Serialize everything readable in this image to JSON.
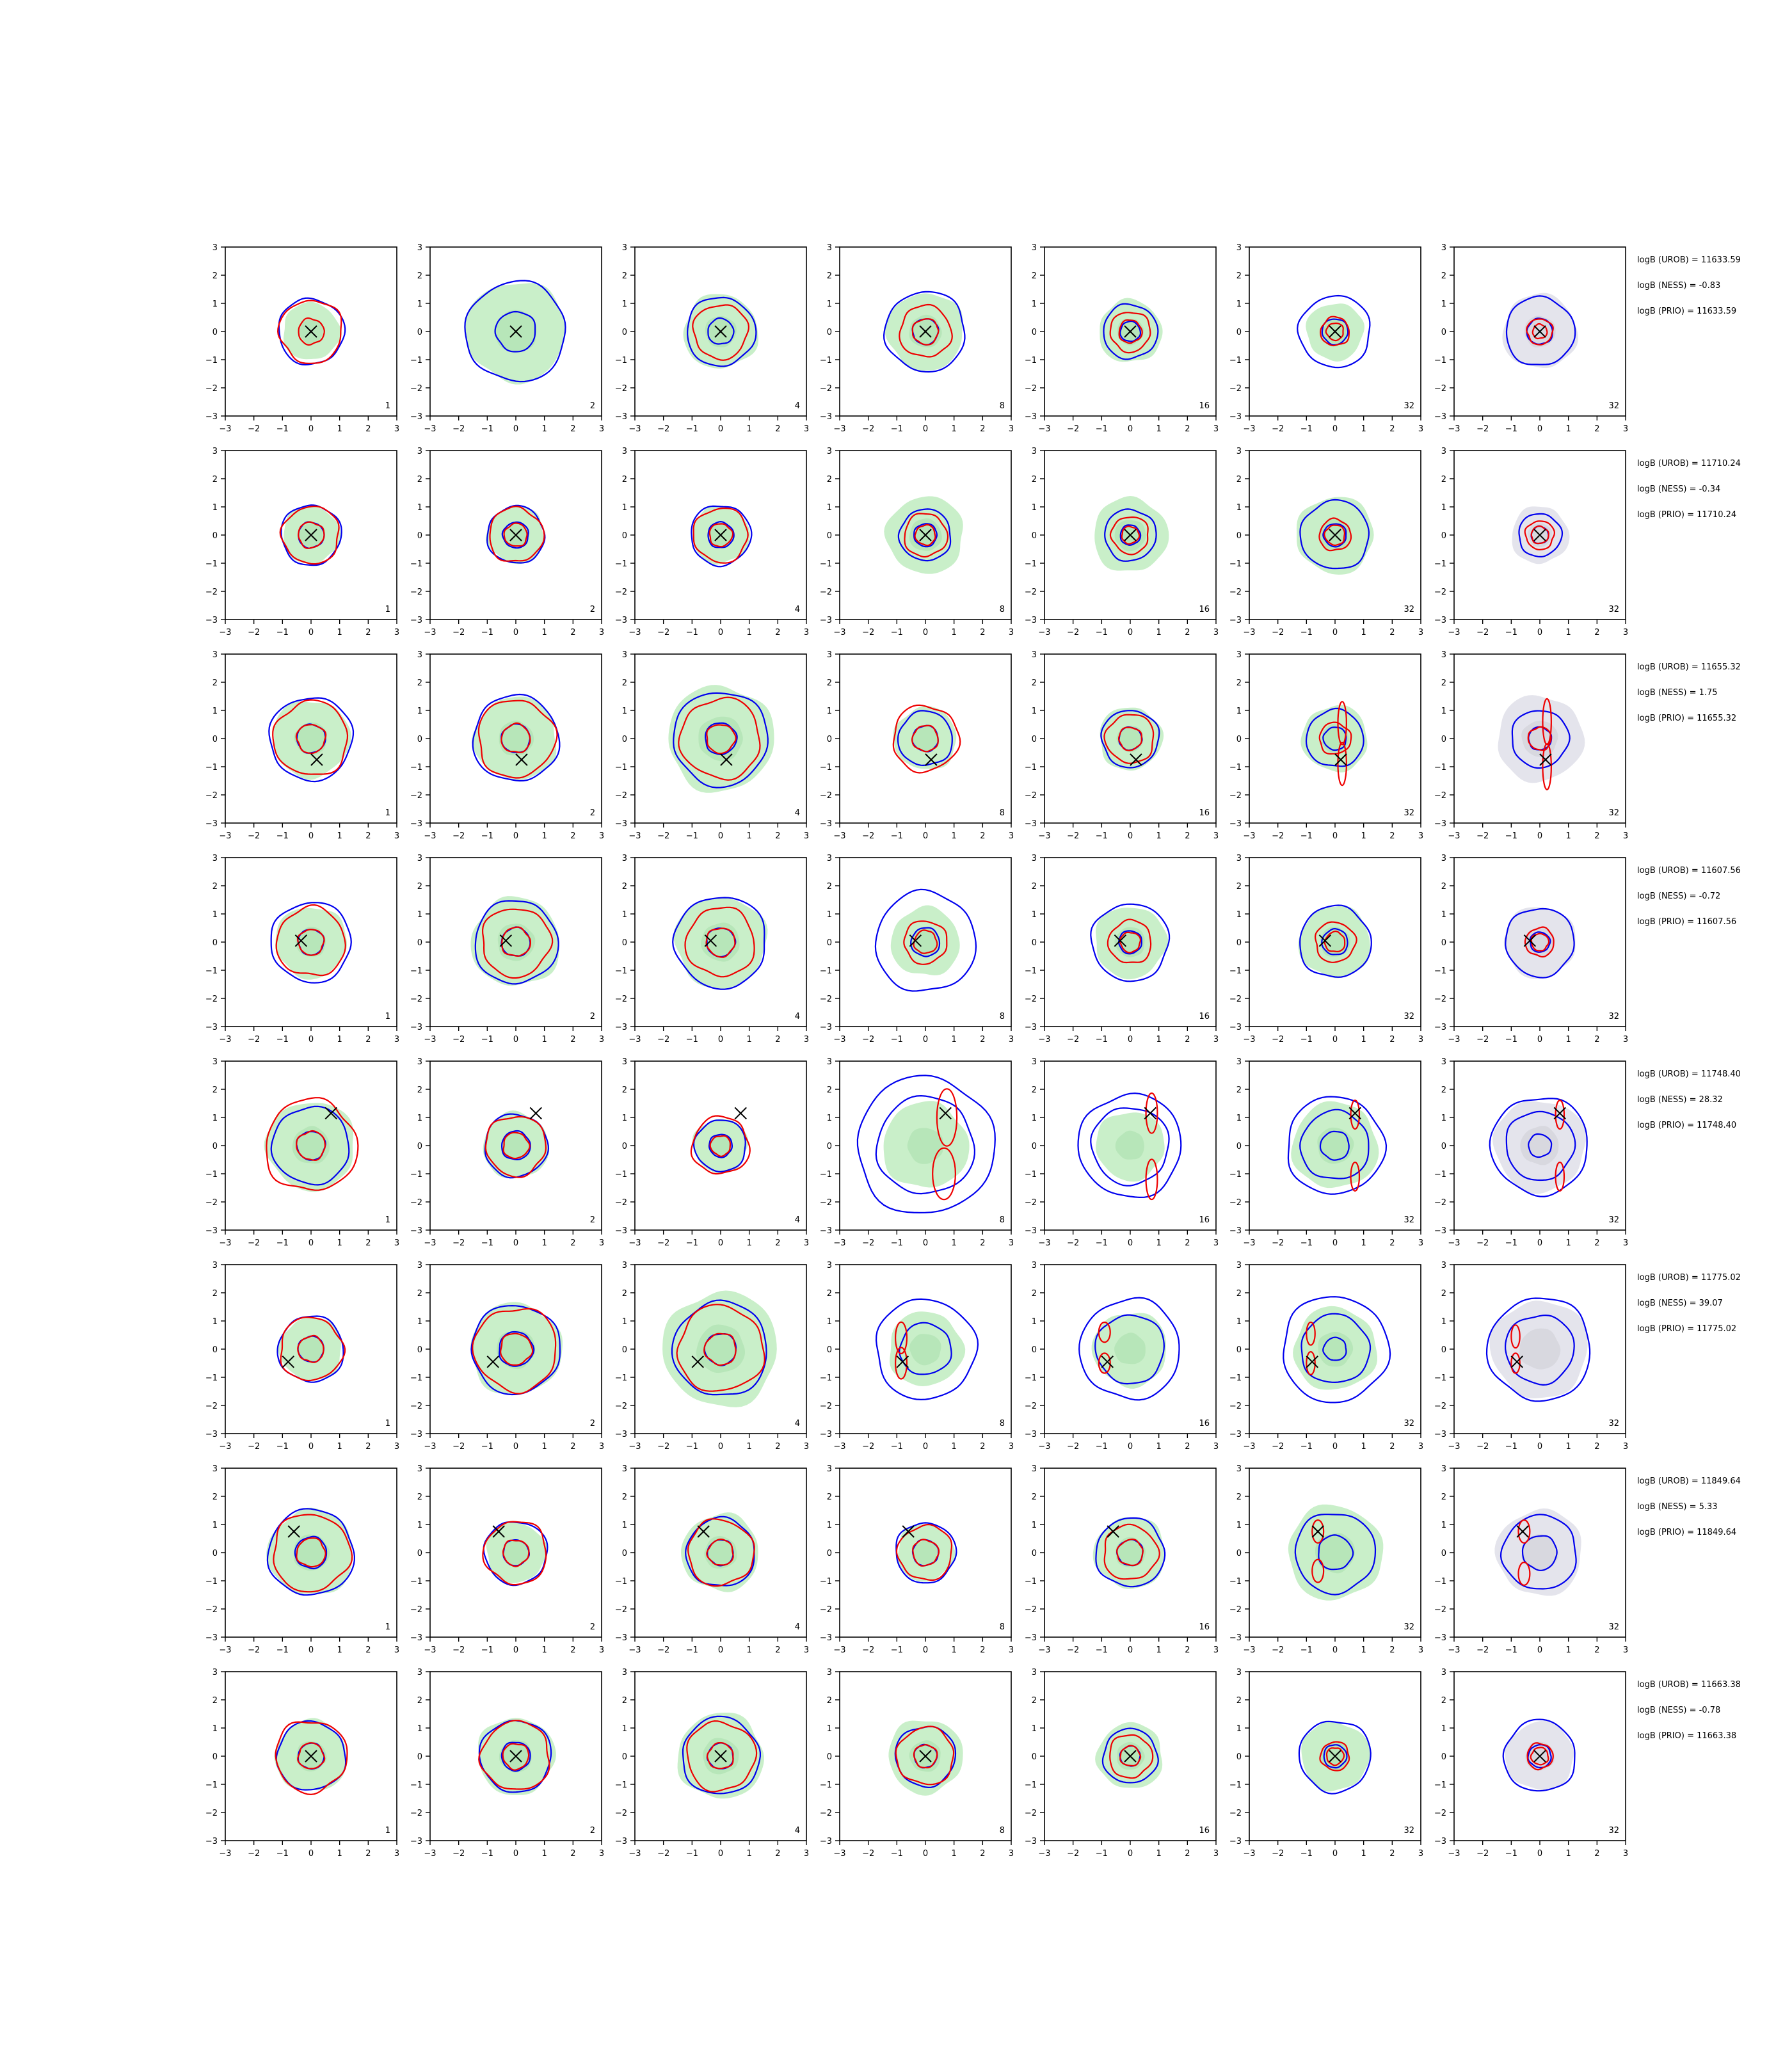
{
  "chart_data": {
    "type": "contour-grid",
    "title": "",
    "panel_xlim": [
      -3,
      3
    ],
    "panel_ylim": [
      -3,
      3
    ],
    "tick_labels": [
      "−3",
      "−2",
      "−1",
      "0",
      "1",
      "2",
      "3"
    ],
    "column_labels": [
      "1",
      "2",
      "4",
      "8",
      "16",
      "32",
      "32"
    ],
    "series_colors": {
      "blue_contour": "#0000ee",
      "red_contour": "#ee0000",
      "green_fill": "#c9efc9",
      "gray_fill": "#e4e4ec",
      "marker": "#000000"
    },
    "rows": [
      {
        "marker": [
          0.0,
          0.0
        ],
        "annotations": [
          "logB (UROB) = 11633.59",
          "logB (NESS) = -0.83",
          "logB (PRIO) = 11633.59"
        ],
        "panels": [
          {
            "fill": 1.0,
            "blue": [
              1.15
            ],
            "red": [
              1.1,
              0.45
            ]
          },
          {
            "fill": 1.75,
            "blue": [
              1.75,
              0.7
            ],
            "red": []
          },
          {
            "fill": 1.3,
            "blue": [
              1.2,
              0.45
            ],
            "red": [
              0.95
            ]
          },
          {
            "fill": 1.35,
            "blue": [
              1.4,
              0.45
            ],
            "red": [
              0.9,
              0.45
            ]
          },
          {
            "fill": 1.1,
            "blue": [
              0.95,
              0.35
            ],
            "red": [
              0.7,
              0.4
            ]
          },
          {
            "fill": 1.0,
            "blue": [
              1.25,
              0.45
            ],
            "red": [
              0.5,
              0.3
            ]
          },
          {
            "fill": 1.3,
            "blue": [
              1.2,
              0.45
            ],
            "red": [
              0.45,
              0.25
            ]
          }
        ]
      },
      {
        "marker": [
          0.0,
          0.0
        ],
        "annotations": [
          "logB (UROB) = 11710.24",
          "logB (NESS) = -0.34",
          "logB (PRIO) = 11710.24"
        ],
        "panels": [
          {
            "fill": 1.0,
            "blue": [
              1.05,
              0.45
            ],
            "red": [
              1.0,
              0.45
            ]
          },
          {
            "fill": 1.0,
            "blue": [
              1.0,
              0.45
            ],
            "red": [
              0.95,
              0.4
            ]
          },
          {
            "fill": 1.0,
            "blue": [
              1.05,
              0.45
            ],
            "red": [
              0.95,
              0.4
            ]
          },
          {
            "fill": 1.35,
            "blue": [
              0.9,
              0.4
            ],
            "red": [
              0.75,
              0.35
            ]
          },
          {
            "fill": 1.3,
            "blue": [
              0.9,
              0.35
            ],
            "red": [
              0.65,
              0.3
            ]
          },
          {
            "fill": 1.35,
            "blue": [
              1.2,
              0.4
            ],
            "red": [
              0.55,
              0.35
            ]
          },
          {
            "fill": 1.0,
            "blue": [
              0.75,
              0.3
            ],
            "red": [
              0.5,
              0.3
            ]
          }
        ]
      },
      {
        "marker": [
          0.2,
          -0.75
        ],
        "annotations": [
          "logB (UROB) = 11655.32",
          "logB (NESS) = 1.75",
          "logB (PRIO) = 11655.32"
        ],
        "panels": [
          {
            "fill": 1.35,
            "blue": [
              1.45,
              0.5
            ],
            "red": [
              1.3,
              0.5
            ]
          },
          {
            "fill": 1.45,
            "blue": [
              1.5,
              0.5
            ],
            "red": [
              1.35,
              0.5
            ]
          },
          {
            "fill": 1.85,
            "blue": [
              1.65,
              0.55
            ],
            "red": [
              1.4,
              0.5
            ]
          },
          {
            "fill": 1.1,
            "blue": [
              0.95,
              0.45
            ],
            "red": [
              1.15,
              0.45
            ]
          },
          {
            "fill": 1.1,
            "blue": [
              1.0,
              0.4
            ],
            "red": [
              0.85,
              0.4
            ]
          },
          {
            "fill": 1.15,
            "blue": [
              1.0,
              0.4
            ],
            "red": [
              0.55
            ],
            "ellipses": [
              [
                0.25,
                0.55,
                0.15,
                0.75
              ],
              [
                0.25,
                -0.9,
                0.15,
                0.75
              ]
            ]
          },
          {
            "fill": 1.5,
            "blue": [
              1.0,
              0.4
            ],
            "red": [
              0.4
            ],
            "ellipses": [
              [
                0.25,
                0.6,
                0.15,
                0.8
              ],
              [
                0.25,
                -1.0,
                0.15,
                0.8
              ]
            ]
          }
        ]
      },
      {
        "marker": [
          -0.35,
          0.05
        ],
        "annotations": [
          "logB (UROB) = 11607.56",
          "logB (NESS) = -0.72",
          "logB (PRIO) = 11607.56"
        ],
        "panels": [
          {
            "fill": 1.25,
            "blue": [
              1.4,
              0.45
            ],
            "red": [
              1.2,
              0.45
            ]
          },
          {
            "fill": 1.55,
            "blue": [
              1.45,
              0.5
            ],
            "red": [
              1.2,
              0.5
            ]
          },
          {
            "fill": 1.6,
            "blue": [
              1.6,
              0.5
            ],
            "red": [
              1.2,
              0.5
            ]
          },
          {
            "fill": 1.2,
            "blue": [
              1.75,
              0.5
            ],
            "red": [
              0.75,
              0.4
            ]
          },
          {
            "fill": 1.25,
            "blue": [
              1.35,
              0.4
            ],
            "red": [
              0.75,
              0.35
            ]
          },
          {
            "fill": 1.25,
            "blue": [
              1.25,
              0.45
            ],
            "red": [
              0.7,
              0.35
            ]
          },
          {
            "fill": 1.25,
            "blue": [
              1.2,
              0.35
            ],
            "red": [
              0.5,
              0.3
            ]
          }
        ]
      },
      {
        "marker": [
          0.7,
          1.15
        ],
        "annotations": [
          "logB (UROB) = 11748.40",
          "logB (NESS) = 28.32",
          "logB (PRIO) = 11748.40"
        ],
        "panels": [
          {
            "fill": 1.55,
            "blue": [
              1.35,
              0.5
            ],
            "red": [
              1.6,
              0.5
            ]
          },
          {
            "fill": 1.15,
            "blue": [
              1.1,
              0.5
            ],
            "red": [
              1.05,
              0.45
            ]
          },
          {
            "fill": 0.95,
            "blue": [
              0.9,
              0.4
            ],
            "red": [
              1.0,
              0.35
            ]
          },
          {
            "fill": 1.5,
            "blue": [
              2.4,
              1.7
            ],
            "red": [],
            "ellipses": [
              [
                0.75,
                1.0,
                0.35,
                1.0
              ],
              [
                0.65,
                -1.0,
                0.4,
                0.9
              ]
            ]
          },
          {
            "fill": 1.2,
            "blue": [
              1.8,
              1.35
            ],
            "red": [],
            "ellipses": [
              [
                0.75,
                1.15,
                0.2,
                0.7
              ],
              [
                0.75,
                -1.2,
                0.2,
                0.7
              ]
            ]
          },
          {
            "fill": 1.5,
            "blue": [
              1.7,
              1.2,
              0.5
            ],
            "red": [],
            "ellipses": [
              [
                0.7,
                1.1,
                0.15,
                0.5
              ],
              [
                0.7,
                -1.1,
                0.15,
                0.5
              ]
            ]
          },
          {
            "fill": 1.6,
            "blue": [
              1.7,
              1.2,
              0.4
            ],
            "red": [],
            "ellipses": [
              [
                0.7,
                1.1,
                0.15,
                0.5
              ],
              [
                0.7,
                -1.1,
                0.15,
                0.5
              ]
            ]
          }
        ]
      },
      {
        "marker": [
          -0.8,
          -0.45
        ],
        "annotations": [
          "logB (UROB) = 11775.02",
          "logB (NESS) = 39.07",
          "logB (PRIO) = 11775.02"
        ],
        "panels": [
          {
            "fill": 1.1,
            "blue": [
              1.15,
              0.45
            ],
            "red": [
              1.1,
              0.45
            ]
          },
          {
            "fill": 1.6,
            "blue": [
              1.55,
              0.6
            ],
            "red": [
              1.45,
              0.55
            ]
          },
          {
            "fill": 2.0,
            "blue": [
              1.65,
              0.55
            ],
            "red": [
              1.5,
              0.55
            ]
          },
          {
            "fill": 1.3,
            "blue": [
              1.75,
              0.9
            ],
            "red": [],
            "ellipses": [
              [
                -0.85,
                0.4,
                0.2,
                0.55
              ],
              [
                -0.85,
                -0.5,
                0.2,
                0.55
              ]
            ]
          },
          {
            "fill": 1.3,
            "blue": [
              1.75,
              1.2
            ],
            "red": [],
            "ellipses": [
              [
                -0.9,
                0.6,
                0.2,
                0.35
              ],
              [
                -0.9,
                -0.5,
                0.2,
                0.35
              ]
            ]
          },
          {
            "fill": 1.45,
            "blue": [
              1.85,
              1.2,
              0.4
            ],
            "red": [],
            "ellipses": [
              [
                -0.85,
                0.55,
                0.15,
                0.4
              ],
              [
                -0.85,
                -0.5,
                0.15,
                0.4
              ]
            ]
          },
          {
            "fill": 1.7,
            "blue": [
              1.8,
              1.2
            ],
            "red": [],
            "ellipses": [
              [
                -0.85,
                0.45,
                0.15,
                0.4
              ],
              [
                -0.85,
                -0.5,
                0.15,
                0.35
              ]
            ]
          }
        ]
      },
      {
        "marker": [
          -0.6,
          0.75
        ],
        "annotations": [
          "logB (UROB) = 11849.64",
          "logB (NESS) = 5.33",
          "logB (PRIO) = 11849.64"
        ],
        "panels": [
          {
            "fill": 1.5,
            "blue": [
              1.5,
              0.55
            ],
            "red": [
              1.35,
              0.5
            ]
          },
          {
            "fill": 1.05,
            "blue": [
              1.1,
              0.45
            ],
            "red": [
              1.1,
              0.45
            ]
          },
          {
            "fill": 1.35,
            "blue": [
              1.2,
              0.45
            ],
            "red": [
              1.15,
              0.45
            ]
          },
          {
            "fill": 1.0,
            "blue": [
              1.05,
              0.45
            ],
            "red": [
              0.95,
              0.45
            ]
          },
          {
            "fill": 1.25,
            "blue": [
              1.2,
              0.45
            ],
            "red": [
              0.95,
              0.45
            ]
          },
          {
            "fill": 1.65,
            "blue": [
              1.4,
              0.6
            ],
            "red": [],
            "ellipses": [
              [
                -0.6,
                0.75,
                0.2,
                0.4
              ],
              [
                -0.6,
                -0.65,
                0.2,
                0.4
              ]
            ]
          },
          {
            "fill": 1.5,
            "blue": [
              1.3,
              0.6
            ],
            "red": [],
            "ellipses": [
              [
                -0.55,
                0.75,
                0.2,
                0.4
              ],
              [
                -0.55,
                -0.75,
                0.2,
                0.4
              ]
            ]
          }
        ]
      },
      {
        "marker": [
          0.0,
          0.0
        ],
        "annotations": [
          "logB (UROB) = 11663.38",
          "logB (NESS) = -0.78",
          "logB (PRIO) = 11663.38"
        ],
        "panels": [
          {
            "fill": 1.25,
            "blue": [
              1.2,
              0.45
            ],
            "red": [
              1.25,
              0.45
            ]
          },
          {
            "fill": 1.35,
            "blue": [
              1.25,
              0.5
            ],
            "red": [
              1.2,
              0.45
            ]
          },
          {
            "fill": 1.5,
            "blue": [
              1.35,
              0.45
            ],
            "red": [
              1.2,
              0.45
            ]
          },
          {
            "fill": 1.3,
            "blue": [
              1.05,
              0.4
            ],
            "red": [
              1.0,
              0.4
            ]
          },
          {
            "fill": 1.15,
            "blue": [
              0.95,
              0.35
            ],
            "red": [
              0.75,
              0.35
            ]
          },
          {
            "fill": 1.2,
            "blue": [
              1.25,
              0.4
            ],
            "red": [
              0.5,
              0.3
            ]
          },
          {
            "fill": 1.2,
            "blue": [
              1.25,
              0.4
            ],
            "red": [
              0.45,
              0.3
            ]
          }
        ]
      }
    ]
  }
}
